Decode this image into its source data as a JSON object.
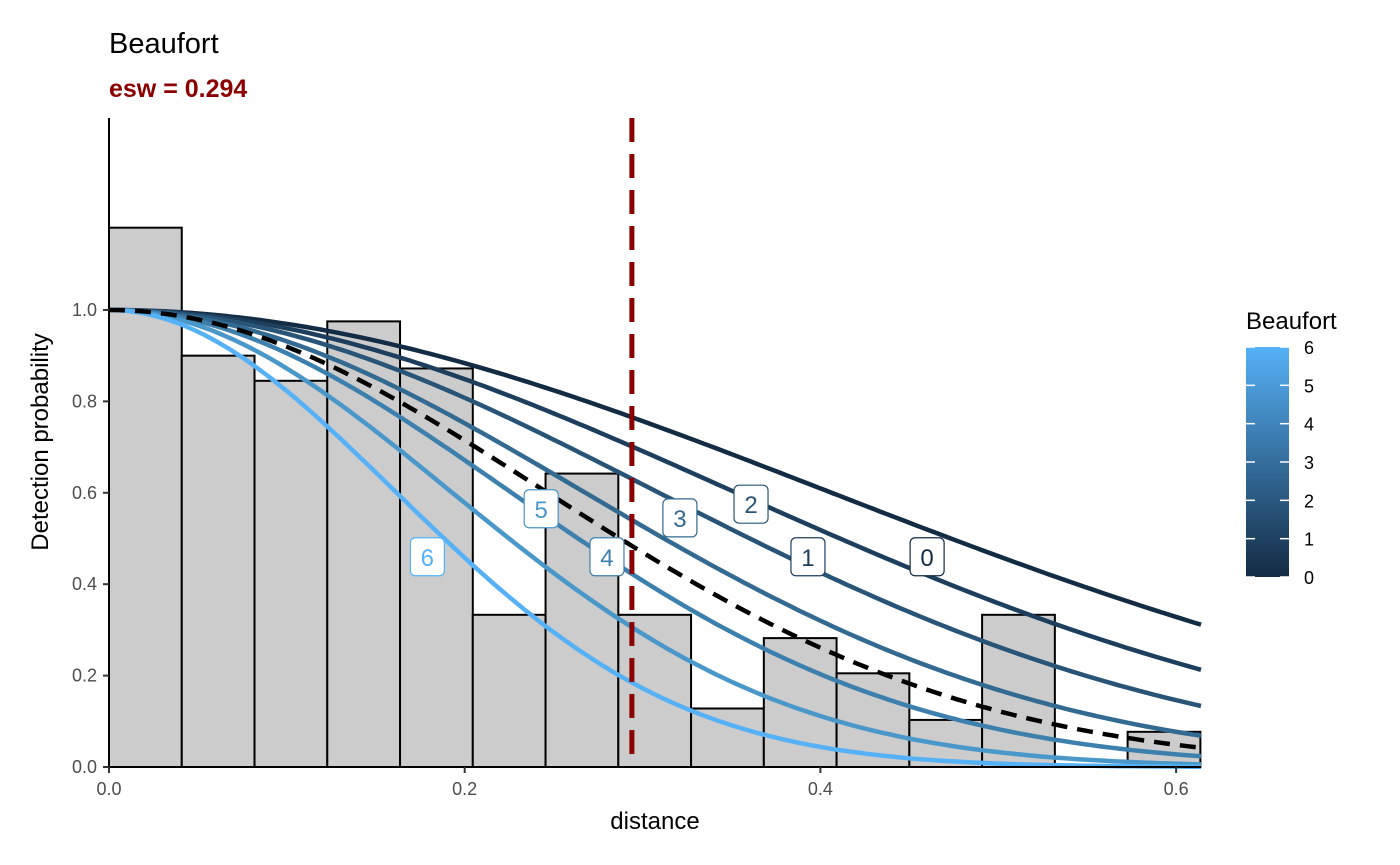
{
  "chart_data": {
    "type": "line",
    "title": "Beaufort",
    "subtitle": "esw = 0.294",
    "xlabel": "distance",
    "ylabel": "Detection probability",
    "xlim": [
      0,
      0.614
    ],
    "ylim": [
      0,
      1.42
    ],
    "x_ticks": [
      {
        "v": 0,
        "label": "0.0"
      },
      {
        "v": 0.2,
        "label": "0.2"
      },
      {
        "v": 0.4,
        "label": "0.4"
      },
      {
        "v": 0.6,
        "label": "0.6"
      }
    ],
    "y_ticks": [
      {
        "v": 0,
        "label": "0.0"
      },
      {
        "v": 0.2,
        "label": "0.2"
      },
      {
        "v": 0.4,
        "label": "0.4"
      },
      {
        "v": 0.6,
        "label": "0.6"
      },
      {
        "v": 0.8,
        "label": "0.8"
      },
      {
        "v": 1.0,
        "label": "1.0"
      }
    ],
    "grid": false,
    "histogram": {
      "bin_width": 0.04091,
      "fill": "#cccccc",
      "stroke": "#000000",
      "values": [
        1.18,
        0.9,
        0.845,
        0.975,
        0.872,
        0.333,
        0.642,
        0.333,
        0.128,
        0.282,
        0.205,
        0.103,
        0.333,
        0.0,
        0.077
      ]
    },
    "esw_line": {
      "x": 0.294,
      "color": "#8B0000"
    },
    "average_curve": {
      "sigma": 0.244,
      "color": "#000000"
    },
    "series": [
      {
        "name": "0",
        "sigma": 0.402,
        "color": "#132B43",
        "label_at": [
          0.46,
          0.46
        ]
      },
      {
        "name": "1",
        "sigma": 0.349,
        "color": "#1D3F5D",
        "label_at": [
          0.393,
          0.46
        ]
      },
      {
        "name": "2",
        "sigma": 0.306,
        "color": "#285577",
        "label_at": [
          0.361,
          0.575
        ]
      },
      {
        "name": "3",
        "sigma": 0.265,
        "color": "#336A91",
        "label_at": [
          0.321,
          0.545
        ]
      },
      {
        "name": "4",
        "sigma": 0.224,
        "color": "#3E80AD",
        "label_at": [
          0.28,
          0.46
        ]
      },
      {
        "name": "5",
        "sigma": 0.191,
        "color": "#4A97C9",
        "label_at": [
          0.243,
          0.565
        ]
      },
      {
        "name": "6",
        "sigma": 0.16,
        "color": "#56B1F7",
        "label_at": [
          0.179,
          0.46
        ]
      }
    ],
    "legend": {
      "title": "Beaufort",
      "position": "right",
      "range": [
        0,
        6
      ],
      "ticks": [
        "0",
        "1",
        "2",
        "3",
        "4",
        "5",
        "6"
      ],
      "low_color": "#132B43",
      "high_color": "#56B1F7"
    }
  }
}
